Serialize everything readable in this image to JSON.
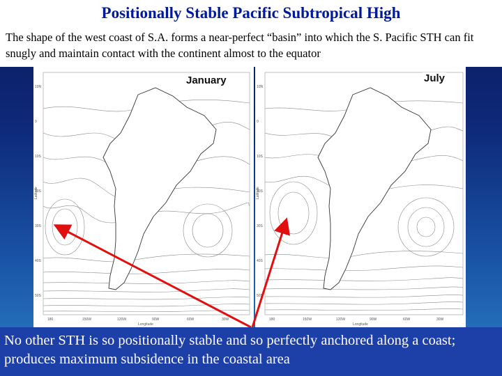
{
  "slide": {
    "title": "Positionally Stable Pacific Subtropical High",
    "intro": "The shape of the west coast of S.A. forms a near-perfect “basin” into which the S. Pacific STH can fit snugly and maintain contact with the continent almost to the equator",
    "footer": "No other STH is so positionally stable and so perfectly anchored along a coast; produces maximum subsidence in the coastal area",
    "colors": {
      "title": "#001a99",
      "arrow": "#e01010",
      "footer_bg": "#1d3fa8"
    }
  },
  "maps": {
    "january": {
      "label": "January",
      "y_axis": "Latitude",
      "x_axis": "Longitude"
    },
    "july": {
      "label": "July",
      "y_axis": "Latitude",
      "x_axis": "Longitude"
    }
  }
}
